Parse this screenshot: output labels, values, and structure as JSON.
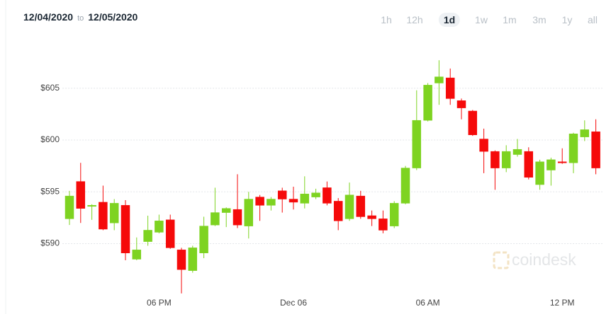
{
  "header": {
    "from": "12/04/2020",
    "separator": "to",
    "to": "12/05/2020",
    "ranges": [
      "1h",
      "12h",
      "1d",
      "1w",
      "1m",
      "3m",
      "1y",
      "all"
    ],
    "active_range": "1d"
  },
  "watermark": "coindesk",
  "chart_data": {
    "type": "candlestick",
    "categories": [
      null,
      null,
      null,
      null,
      null,
      null,
      null,
      null,
      "06 PM",
      null,
      null,
      null,
      null,
      null,
      null,
      null,
      null,
      null,
      null,
      null,
      "Dec 06",
      null,
      null,
      null,
      null,
      null,
      null,
      null,
      null,
      null,
      null,
      null,
      "06 AM",
      null,
      null,
      null,
      null,
      null,
      null,
      null,
      null,
      null,
      null,
      null,
      "12 PM",
      null,
      null,
      null
    ],
    "series": [
      {
        "name": "open",
        "values": [
          592.4,
          596.0,
          593.6,
          594.0,
          592.0,
          593.7,
          588.5,
          590.2,
          591.1,
          592.3,
          589.4,
          587.4,
          589.1,
          591.8,
          593.0,
          593.3,
          591.7,
          594.5,
          593.7,
          595.1,
          594.3,
          593.9,
          594.5,
          595.4,
          594.1,
          592.4,
          594.6,
          592.7,
          592.4,
          591.7,
          593.9,
          597.3,
          601.9,
          605.5,
          606.0,
          603.8,
          602.8,
          600.1,
          598.9,
          597.3,
          598.6,
          598.9,
          595.7,
          597.1,
          597.9,
          597.8,
          600.3,
          600.8
        ]
      },
      {
        "name": "high",
        "values": [
          595.1,
          597.8,
          593.8,
          595.6,
          594.3,
          594.2,
          590.6,
          592.7,
          592.8,
          592.8,
          589.6,
          589.8,
          592.6,
          595.4,
          593.5,
          596.7,
          595.0,
          594.7,
          594.5,
          595.4,
          595.5,
          596.5,
          595.3,
          596.0,
          594.4,
          595.9,
          595.1,
          593.2,
          593.2,
          594.1,
          597.5,
          604.8,
          605.5,
          607.7,
          606.9,
          604.0,
          602.9,
          601.1,
          599.0,
          599.5,
          600.1,
          599.3,
          598.1,
          598.3,
          599.2,
          600.7,
          601.9,
          602.0
        ]
      },
      {
        "name": "low",
        "values": [
          591.8,
          592.0,
          592.3,
          591.3,
          591.3,
          588.4,
          588.4,
          589.8,
          591.0,
          589.5,
          585.2,
          587.2,
          588.6,
          591.7,
          591.6,
          591.5,
          590.5,
          592.2,
          593.2,
          593.0,
          593.3,
          593.4,
          594.3,
          593.7,
          591.3,
          592.2,
          592.4,
          591.7,
          591.0,
          591.5,
          593.8,
          597.1,
          601.8,
          603.4,
          603.4,
          602.0,
          600.4,
          596.8,
          595.2,
          596.9,
          598.4,
          596.2,
          595.2,
          595.6,
          597.7,
          596.8,
          599.9,
          596.7
        ]
      },
      {
        "name": "close",
        "values": [
          594.6,
          593.4,
          593.7,
          591.4,
          593.9,
          589.1,
          589.4,
          591.3,
          592.2,
          589.6,
          587.5,
          589.6,
          591.7,
          593.0,
          593.4,
          591.8,
          594.3,
          593.7,
          594.3,
          594.3,
          594.0,
          594.8,
          594.9,
          593.9,
          592.2,
          594.7,
          592.6,
          592.4,
          591.3,
          593.9,
          597.3,
          601.9,
          605.3,
          606.1,
          604.0,
          603.1,
          600.5,
          598.9,
          597.3,
          598.9,
          599.1,
          596.4,
          597.9,
          598.1,
          597.8,
          600.6,
          601.0,
          597.3
        ]
      }
    ],
    "up_color": "#7ed321",
    "down_color": "#f50a0a",
    "ylim": [
      585,
      610
    ],
    "yticks": [
      {
        "value": 590,
        "label": "$590"
      },
      {
        "value": 595,
        "label": "$595"
      },
      {
        "value": 600,
        "label": "$600"
      },
      {
        "value": 605,
        "label": "$605"
      }
    ],
    "grid": true
  }
}
